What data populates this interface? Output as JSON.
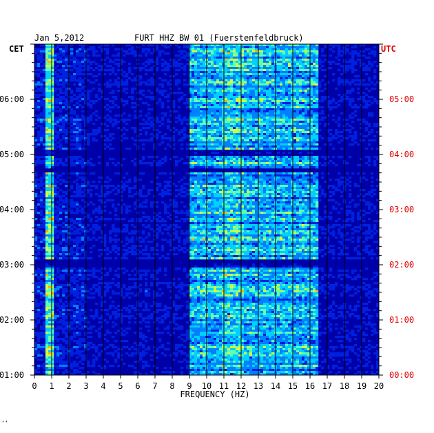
{
  "header": {
    "date": "Jan 5,2012",
    "station": "FURT HHZ BW 01 (Fuerstenfeldbruck)",
    "left_zone": "CET",
    "right_zone": "UTC"
  },
  "colors": {
    "background": "#0000a8",
    "grid": "#000000",
    "utc_labels": "#e00000",
    "cet_labels": "#000000",
    "colormap": [
      "#00008c",
      "#0020e0",
      "#0080ff",
      "#00d0ff",
      "#60ffb0",
      "#d0ff40",
      "#ffb000",
      "#ff3000"
    ]
  },
  "footer_mark": "‘‘",
  "chart_data": {
    "type": "heatmap",
    "title": "FURT HHZ BW 01 (Fuerstenfeldbruck)",
    "xlabel": "FREQUENCY (HZ)",
    "xlim": [
      0,
      20
    ],
    "x_ticks": [
      "0",
      "1",
      "2",
      "3",
      "4",
      "5",
      "6",
      "7",
      "8",
      "9",
      "10",
      "11",
      "12",
      "13",
      "14",
      "15",
      "16",
      "17",
      "18",
      "19",
      "20"
    ],
    "y_ticks_cet": [
      "01:00",
      "02:00",
      "03:00",
      "04:00",
      "05:00",
      "06:00"
    ],
    "y_ticks_utc": [
      "00:00",
      "01:00",
      "02:00",
      "03:00",
      "04:00",
      "05:00"
    ],
    "ylim_utc_hours": [
      0,
      6
    ],
    "grid": true
  }
}
